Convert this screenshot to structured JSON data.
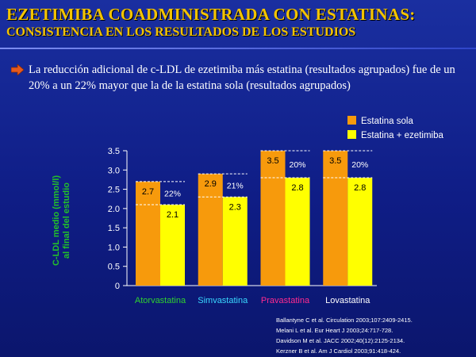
{
  "header": {
    "title": "EZETIMIBA COADMINISTRADA CON ESTATINAS:",
    "subtitle": "CONSISTENCIA EN LOS RESULTADOS DE LOS ESTUDIOS"
  },
  "bullet": {
    "icon": "arrow-right-icon",
    "text": "La reducción adicional de c-LDL de ezetimiba más estatina (resultados agrupados) fue de un 20% a un 22% mayor que la de la estatina sola (resultados agrupados)"
  },
  "colors": {
    "background": "#0f1d86",
    "title": "#f3c300",
    "statin_alone": "#f79a0c",
    "statin_ezetimibe": "#ffff00",
    "ylabel": "#22c02a"
  },
  "chart_data": {
    "type": "bar",
    "categories": [
      "Atorvastatina",
      "Simvastatina",
      "Pravastatina",
      "Lovastatina"
    ],
    "category_colors": [
      "#2fd12f",
      "#39d8ff",
      "#ff2b8f",
      "#ffffff"
    ],
    "series": [
      {
        "name": "Estatina sola",
        "values": [
          2.7,
          2.9,
          3.5,
          3.5
        ],
        "color": "#f79a0c"
      },
      {
        "name": "Estatina + ezetimiba",
        "values": [
          2.1,
          2.3,
          2.8,
          2.8
        ],
        "color": "#ffff00"
      }
    ],
    "value_labels": {
      "Estatina sola": [
        "2.7",
        "2.9",
        "3.5",
        "3.5"
      ],
      "Estatina + ezetimiba": [
        "2.1",
        "2.3",
        "2.8",
        "2.8"
      ]
    },
    "percent_labels": [
      "22%",
      "21%",
      "20%",
      "20%"
    ],
    "ylabel_line1": "C-LDL medio (mmol/l)",
    "ylabel_line2": "al final del estudio",
    "ylim": [
      0,
      3.5
    ],
    "yticks": [
      "0",
      "0.5",
      "1.0",
      "1.5",
      "2.0",
      "2.5",
      "3.0",
      "3.5"
    ],
    "ytick_values": [
      0,
      0.5,
      1.0,
      1.5,
      2.0,
      2.5,
      3.0,
      3.5
    ],
    "grid": false,
    "legend_position": "top-right"
  },
  "references": [
    "Ballantyne C et al. Circulation 2003;107:2409-2415.",
    "Melani L et al. Eur Heart J 2003;24:717-728.",
    "Davidson M et al. JACC 2002;40(12):2125-2134.",
    "Kerzner B et al. Am J Cardiol 2003;91:418-424."
  ]
}
